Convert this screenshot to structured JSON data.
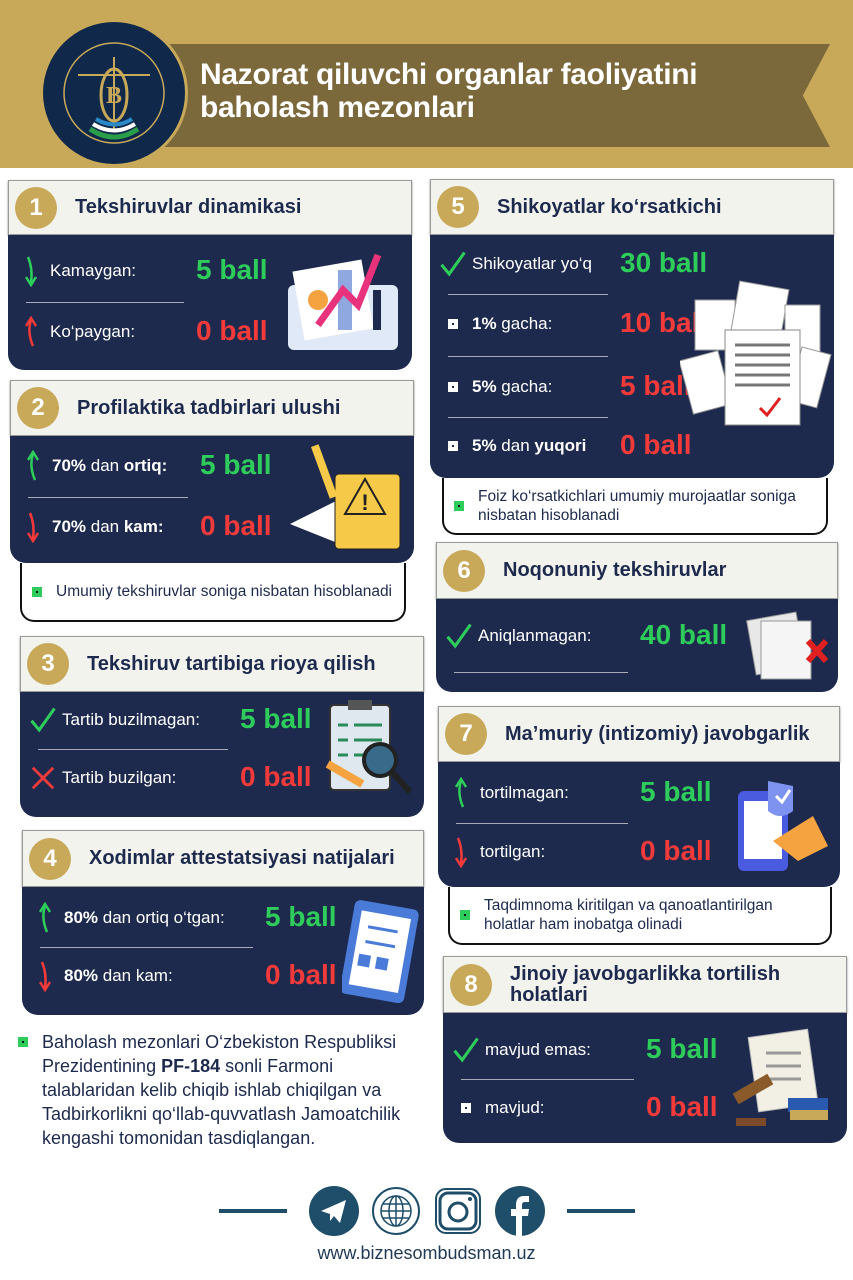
{
  "header": {
    "title_line1": "Nazorat qiluvchi organlar faoliyatini",
    "title_line2": "baholash mezonlari",
    "logo_text_top": "O‘ZBEKISTON RESPUBLIKASI",
    "logo_text_bottom": "BIZNES-OMBUDSMAN",
    "logo_letter": "B"
  },
  "colors": {
    "navy": "#1d2a4d",
    "gold": "#c8a95a",
    "ribbon": "#7b683b",
    "green": "#2ecc5a",
    "red": "#f23a3a"
  },
  "cards": [
    {
      "num": "1",
      "title": "Tekshiruvlar dinamikasi",
      "illustration": "analytics-laptop",
      "rows": [
        {
          "icon": "arrow-down-green",
          "label": [
            {
              "t": "Kamaygan:",
              "b": false
            }
          ],
          "value": "5 ball",
          "color": "green"
        },
        {
          "icon": "arrow-up-red",
          "label": [
            {
              "t": "Ko‘paygan:",
              "b": false
            }
          ],
          "value": "0 ball",
          "color": "red"
        }
      ]
    },
    {
      "num": "2",
      "title": "Profilaktika tadbirlari ulushi",
      "illustration": "warning-clipboard",
      "note": "Umumiy tekshiruvlar soniga nisbatan hisoblanadi",
      "rows": [
        {
          "icon": "arrow-up-green",
          "label": [
            {
              "t": "70%",
              "b": true
            },
            {
              "t": " dan ",
              "b": false
            },
            {
              "t": "ortiq:",
              "b": true
            }
          ],
          "value": "5 ball",
          "color": "green"
        },
        {
          "icon": "arrow-down-red",
          "label": [
            {
              "t": "70%",
              "b": true
            },
            {
              "t": " dan ",
              "b": false
            },
            {
              "t": "kam:",
              "b": true
            }
          ],
          "value": "0 ball",
          "color": "red"
        }
      ]
    },
    {
      "num": "3",
      "title": "Tekshiruv tartibiga rioya qilish",
      "illustration": "checklist-magnifier",
      "rows": [
        {
          "icon": "check-green",
          "label": [
            {
              "t": "Tartib buzilmagan:",
              "b": false
            }
          ],
          "value": "5 ball",
          "color": "green"
        },
        {
          "icon": "cross-red",
          "label": [
            {
              "t": "Tartib buzilgan:",
              "b": false
            }
          ],
          "value": "0 ball",
          "color": "red"
        }
      ]
    },
    {
      "num": "4",
      "title": "Xodimlar attestatsiyasi natijalari",
      "illustration": "clipboard",
      "rows": [
        {
          "icon": "arrow-up-green",
          "label": [
            {
              "t": "80%",
              "b": true
            },
            {
              "t": " dan ortiq o‘tgan:",
              "b": false
            }
          ],
          "value": "5 ball",
          "color": "green"
        },
        {
          "icon": "arrow-down-red",
          "label": [
            {
              "t": "80%",
              "b": true
            },
            {
              "t": " dan kam:",
              "b": false
            }
          ],
          "value": "0 ball",
          "color": "red"
        }
      ]
    },
    {
      "num": "5",
      "title": "Shikoyatlar ko‘rsatkichi",
      "illustration": "documents",
      "note": "Foiz ko‘rsatkichlari umumiy murojaatlar soniga nisbatan hisoblanadi",
      "rows": [
        {
          "icon": "check-green",
          "label": [
            {
              "t": "Shikoyatlar yo‘q",
              "b": false
            }
          ],
          "value": "30 ball",
          "color": "green"
        },
        {
          "icon": "bullet",
          "label": [
            {
              "t": "1%",
              "b": true
            },
            {
              "t": " gacha:",
              "b": false
            }
          ],
          "value": "10 ball",
          "color": "red"
        },
        {
          "icon": "bullet",
          "label": [
            {
              "t": "5%",
              "b": true
            },
            {
              "t": " gacha:",
              "b": false
            }
          ],
          "value": "5 ball",
          "color": "red"
        },
        {
          "icon": "bullet",
          "label": [
            {
              "t": "5%",
              "b": true
            },
            {
              "t": " dan ",
              "b": false
            },
            {
              "t": "yuqori",
              "b": true
            }
          ],
          "value": "0 ball",
          "color": "red"
        }
      ]
    },
    {
      "num": "6",
      "title": "Noqonuniy tekshiruvlar",
      "illustration": "rejected-document",
      "rows": [
        {
          "icon": "check-green",
          "label": [
            {
              "t": "Aniqlanmagan:",
              "b": false
            }
          ],
          "value": "40 ball",
          "color": "green"
        }
      ]
    },
    {
      "num": "7",
      "title": "Ma’muriy (intizomiy) javobgarlik",
      "illustration": "phone-signature",
      "note": "Taqdimnoma kiritilgan va qanoatlantirilgan holatlar ham inobatga olinadi",
      "rows": [
        {
          "icon": "arrow-up-green",
          "label": [
            {
              "t": "tortilmagan:",
              "b": false
            }
          ],
          "value": "5 ball",
          "color": "green"
        },
        {
          "icon": "arrow-down-red",
          "label": [
            {
              "t": "tortilgan:",
              "b": false
            }
          ],
          "value": "0 ball",
          "color": "red"
        }
      ]
    },
    {
      "num": "8",
      "title": "Jinoiy javobgarlikka tortilish holatlari",
      "illustration": "gavel-scroll",
      "rows": [
        {
          "icon": "check-green",
          "label": [
            {
              "t": "mavjud emas:",
              "b": false
            }
          ],
          "value": "5 ball",
          "color": "green"
        },
        {
          "icon": "bullet",
          "label": [
            {
              "t": "mavjud:",
              "b": false
            }
          ],
          "value": "0 ball",
          "color": "red"
        }
      ]
    }
  ],
  "footer_note": {
    "part1": "Baholash mezonlari O‘zbekiston Respubliksi Prezidentining ",
    "bold": "PF-184",
    "part2": " sonli Farmoni talablaridan kelib chiqib ishlab chiqilgan va Tadbirkorlikni qo‘llab-quvvatlash Jamoatchilik kengashi tomonidan tasdiqlangan."
  },
  "social": [
    "telegram-icon",
    "globe-icon",
    "instagram-icon",
    "facebook-icon"
  ],
  "url": "www.biznesombudsman.uz"
}
